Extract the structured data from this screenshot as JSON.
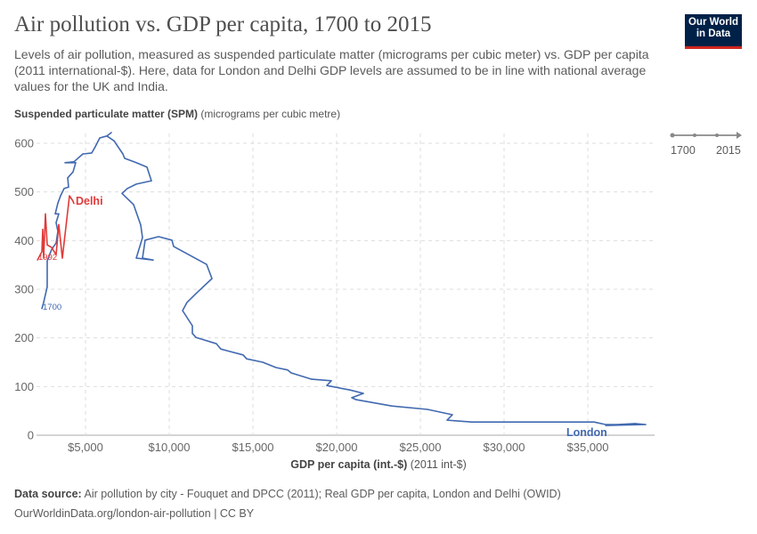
{
  "header": {
    "title": "Air pollution vs. GDP per capita, 1700 to 2015",
    "subtitle": "Levels of air pollution, measured as suspended particulate matter (micrograms per cubic meter) vs. GDP per capita (2011 international-$). Here, data for London and Delhi GDP levels are assumed to be in line with national average values for the UK and India.",
    "logo": "Our World in Data"
  },
  "timeline": {
    "start": "1700",
    "end": "2015"
  },
  "footer": {
    "source_label": "Data source:",
    "source_text": "Air pollution by city - Fouquet and DPCC (2011); Real GDP per capita, London and Delhi (OWID)",
    "url": "OurWorldinData.org/london-air-pollution | CC BY"
  },
  "colors": {
    "london": "#4169b0",
    "delhi": "#e03a3a",
    "logo_bg": "#002147",
    "logo_accent": "#ce261e"
  },
  "chart_data": {
    "type": "line",
    "title": "Air pollution vs. GDP per capita, 1700 to 2015",
    "xlabel_bold": "GDP per capita (int.-$)",
    "xlabel_unit": "(2011 int-$)",
    "ylabel_bold": "Suspended particulate matter (SPM)",
    "ylabel_unit": "(micrograms per cubic metre)",
    "xlim": [
      2100,
      38700
    ],
    "ylim": [
      0,
      630
    ],
    "grid": true,
    "x_ticks": [
      {
        "v": 5000,
        "label": "$5,000"
      },
      {
        "v": 10000,
        "label": "$10,000"
      },
      {
        "v": 15000,
        "label": "$15,000"
      },
      {
        "v": 20000,
        "label": "$20,000"
      },
      {
        "v": 25000,
        "label": "$25,000"
      },
      {
        "v": 30000,
        "label": "$30,000"
      },
      {
        "v": 35000,
        "label": "$35,000"
      }
    ],
    "y_ticks": [
      {
        "v": 0,
        "label": "0"
      },
      {
        "v": 100,
        "label": "100"
      },
      {
        "v": 200,
        "label": "200"
      },
      {
        "v": 300,
        "label": "300"
      },
      {
        "v": 400,
        "label": "400"
      },
      {
        "v": 500,
        "label": "500"
      },
      {
        "v": 600,
        "label": "600"
      }
    ],
    "series": [
      {
        "name": "London",
        "start_label": "1700",
        "points": [
          [
            2394,
            260
          ],
          [
            2500,
            273
          ],
          [
            2713,
            305
          ],
          [
            2713,
            358
          ],
          [
            2979,
            382
          ],
          [
            3245,
            395
          ],
          [
            3351,
            419
          ],
          [
            3245,
            437
          ],
          [
            3404,
            455
          ],
          [
            3191,
            455
          ],
          [
            3351,
            477
          ],
          [
            3511,
            492
          ],
          [
            3723,
            507
          ],
          [
            3989,
            510
          ],
          [
            3936,
            529
          ],
          [
            4255,
            541
          ],
          [
            4415,
            560
          ],
          [
            3777,
            560
          ],
          [
            4308,
            562
          ],
          [
            4840,
            578
          ],
          [
            5372,
            580
          ],
          [
            5585,
            593
          ],
          [
            5851,
            611
          ],
          [
            6277,
            615
          ],
          [
            6543,
            622
          ],
          [
            6277,
            615
          ],
          [
            6702,
            605
          ],
          [
            7234,
            578
          ],
          [
            7340,
            569
          ],
          [
            8032,
            560
          ],
          [
            8670,
            551
          ],
          [
            8936,
            523
          ],
          [
            8032,
            516
          ],
          [
            7500,
            507
          ],
          [
            7181,
            497
          ],
          [
            7872,
            474
          ],
          [
            8298,
            432
          ],
          [
            8404,
            406
          ],
          [
            8032,
            364
          ],
          [
            9043,
            360
          ],
          [
            8404,
            364
          ],
          [
            8564,
            401
          ],
          [
            9362,
            408
          ],
          [
            10160,
            401
          ],
          [
            10266,
            388
          ],
          [
            12234,
            351
          ],
          [
            12553,
            322
          ],
          [
            11596,
            291
          ],
          [
            11064,
            273
          ],
          [
            10798,
            256
          ],
          [
            11383,
            225
          ],
          [
            11383,
            209
          ],
          [
            11596,
            201
          ],
          [
            12819,
            188
          ],
          [
            13085,
            177
          ],
          [
            14415,
            165
          ],
          [
            14628,
            157
          ],
          [
            15585,
            150
          ],
          [
            16383,
            139
          ],
          [
            17074,
            134
          ],
          [
            17287,
            128
          ],
          [
            18510,
            115
          ],
          [
            19681,
            112
          ],
          [
            19415,
            102
          ],
          [
            20798,
            93
          ],
          [
            21596,
            86
          ],
          [
            20904,
            77
          ],
          [
            21170,
            73
          ],
          [
            23298,
            60
          ],
          [
            25426,
            53
          ],
          [
            26915,
            42
          ],
          [
            26596,
            31
          ],
          [
            28085,
            27
          ],
          [
            32500,
            27
          ],
          [
            35372,
            27
          ],
          [
            36064,
            22
          ],
          [
            36755,
            22
          ],
          [
            37819,
            24
          ],
          [
            38457,
            22
          ],
          [
            36064,
            20
          ]
        ]
      },
      {
        "name": "Delhi",
        "start_label": "1992",
        "points": [
          [
            2128,
            360
          ],
          [
            2394,
            377
          ],
          [
            2447,
            423
          ],
          [
            2500,
            364
          ],
          [
            2606,
            455
          ],
          [
            2713,
            391
          ],
          [
            2979,
            386
          ],
          [
            3245,
            371
          ],
          [
            3404,
            433
          ],
          [
            3617,
            364
          ],
          [
            4043,
            492
          ],
          [
            4255,
            481
          ],
          [
            4308,
            476
          ]
        ]
      }
    ]
  }
}
